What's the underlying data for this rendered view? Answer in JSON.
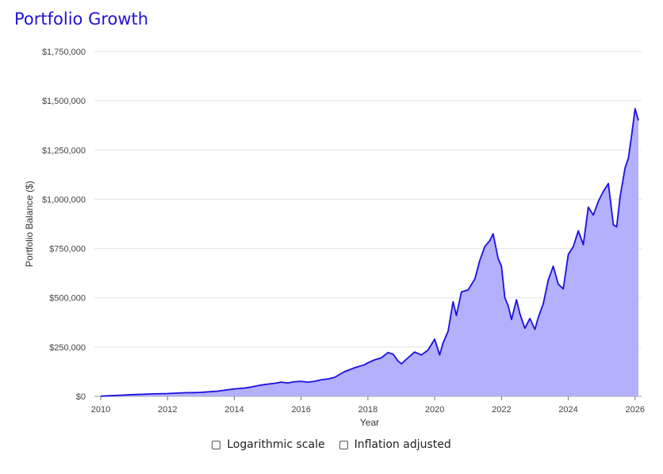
{
  "chart_data": {
    "type": "area",
    "title": "Portfolio Growth",
    "xlabel": "Year",
    "ylabel": "Portfolio Balance ($)",
    "xlim": [
      2010,
      2026.1
    ],
    "ylim": [
      0,
      1750000
    ],
    "x_ticks": [
      2010,
      2012,
      2014,
      2016,
      2018,
      2020,
      2022,
      2024,
      2026
    ],
    "x_tick_labels": [
      "2010",
      "2012",
      "2014",
      "2016",
      "2018",
      "2020",
      "2022",
      "2024",
      "2026"
    ],
    "y_ticks": [
      0,
      250000,
      500000,
      750000,
      1000000,
      1250000,
      1500000,
      1750000
    ],
    "y_tick_labels": [
      "$0",
      "$250,000",
      "$500,000",
      "$750,000",
      "$1,000,000",
      "$1,250,000",
      "$1,500,000",
      "$1,750,000"
    ],
    "grid": true,
    "legend": "none",
    "series": [
      {
        "line_color": "#1b0fe0",
        "fill_color": "#b3b0fc",
        "x": [
          2010.0,
          2010.5,
          2011.0,
          2011.5,
          2012.0,
          2012.5,
          2012.8,
          2013.0,
          2013.5,
          2014.0,
          2014.3,
          2014.5,
          2014.8,
          2015.0,
          2015.2,
          2015.4,
          2015.6,
          2015.8,
          2016.0,
          2016.2,
          2016.4,
          2016.6,
          2016.8,
          2017.0,
          2017.3,
          2017.6,
          2017.9,
          2018.0,
          2018.2,
          2018.4,
          2018.6,
          2018.75,
          2018.9,
          2019.0,
          2019.2,
          2019.4,
          2019.6,
          2019.8,
          2020.0,
          2020.15,
          2020.25,
          2020.4,
          2020.55,
          2020.65,
          2020.8,
          2020.9,
          2021.0,
          2021.2,
          2021.35,
          2021.5,
          2021.65,
          2021.75,
          2021.9,
          2022.0,
          2022.1,
          2022.2,
          2022.3,
          2022.45,
          2022.55,
          2022.7,
          2022.85,
          2023.0,
          2023.1,
          2023.25,
          2023.4,
          2023.55,
          2023.7,
          2023.85,
          2024.0,
          2024.15,
          2024.3,
          2024.45,
          2024.6,
          2024.75,
          2024.9,
          2025.05,
          2025.2,
          2025.35,
          2025.45,
          2025.55,
          2025.7,
          2025.8,
          2025.9,
          2026.0,
          2026.1
        ],
        "values": [
          1000,
          5000,
          9000,
          12000,
          14000,
          18000,
          19000,
          20000,
          26000,
          38000,
          42000,
          47000,
          57000,
          62000,
          66000,
          72000,
          68000,
          74000,
          76000,
          72000,
          76000,
          84000,
          88000,
          96000,
          125000,
          145000,
          160000,
          170000,
          185000,
          195000,
          222000,
          215000,
          180000,
          165000,
          195000,
          225000,
          210000,
          235000,
          290000,
          210000,
          270000,
          330000,
          480000,
          410000,
          530000,
          535000,
          540000,
          595000,
          690000,
          760000,
          790000,
          825000,
          700000,
          660000,
          500000,
          460000,
          390000,
          490000,
          420000,
          345000,
          395000,
          340000,
          400000,
          470000,
          590000,
          660000,
          570000,
          545000,
          720000,
          760000,
          840000,
          770000,
          960000,
          920000,
          990000,
          1040000,
          1080000,
          870000,
          860000,
          1010000,
          1160000,
          1210000,
          1330000,
          1460000,
          1400000
        ]
      }
    ]
  },
  "controls": {
    "log_scale_label": "Logarithmic scale",
    "inflation_label": "Inflation adjusted"
  }
}
